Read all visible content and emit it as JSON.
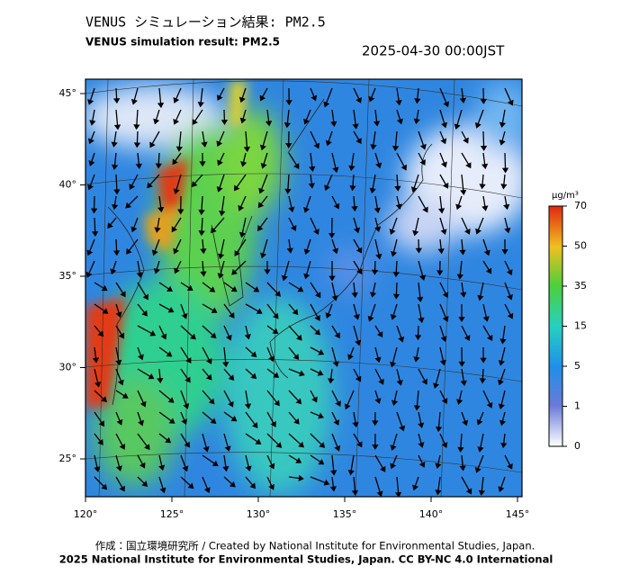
{
  "header": {
    "title": "VENUS シミュレーション結果: PM2.5",
    "subtitle": "VENUS simulation result: PM2.5",
    "datetime": "2025-04-30 00:00JST"
  },
  "map": {
    "lat_labels": [
      "45°",
      "40°",
      "35°",
      "30°",
      "25°"
    ],
    "lon_labels": [
      "120°",
      "125°",
      "130°",
      "135°",
      "140°",
      "145°"
    ]
  },
  "colorbar": {
    "unit": "μg/m³",
    "labels": [
      70,
      50,
      35,
      15,
      5,
      1,
      0
    ]
  },
  "footer": {
    "credit": "作成：国立環境研究所 / Created by National Institute for Environmental Studies, Japan.",
    "license": "2025 National Institute for Environmental Studies, Japan. CC BY-NC 4.0 International"
  }
}
